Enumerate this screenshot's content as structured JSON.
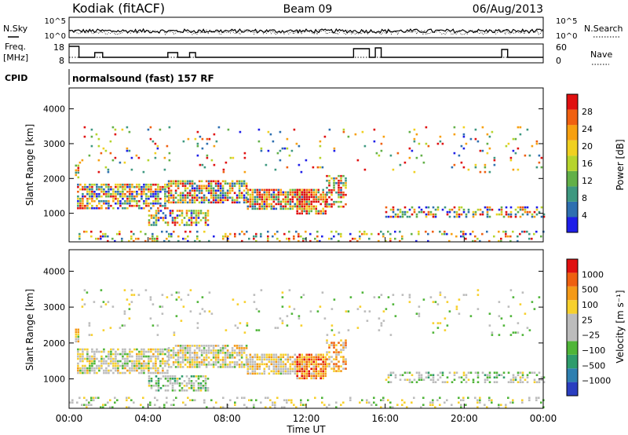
{
  "header": {
    "station": "Kodiak (fitACF)",
    "beam": "Beam 09",
    "date": "06/Aug/2013"
  },
  "mini_panels": {
    "noise": {
      "left_label": "N.Sky",
      "right_label": "N.Search",
      "left_ticks": [
        "10^5",
        "10^0"
      ],
      "right_ticks": [
        "10^5",
        "10^0"
      ]
    },
    "freq": {
      "left_label_1": "Freq.",
      "left_label_2": "[MHz]",
      "right_label": "Nave",
      "left_ticks": [
        "18",
        "8"
      ],
      "right_ticks": [
        "60",
        "0"
      ]
    },
    "cpid": {
      "label": "CPID",
      "value": "normalsound (fast) 157 RF"
    }
  },
  "chart_data": [
    {
      "type": "heatmap",
      "name": "power",
      "ylabel": "Slant Range [km]",
      "yticks": [
        1000,
        2000,
        3000,
        4000
      ],
      "ylim": [
        180,
        4600
      ],
      "colorbar": {
        "label": "Power [dB]",
        "ticks": [
          "4",
          "8",
          "12",
          "16",
          "20",
          "24",
          "28"
        ],
        "colors": [
          "#1e1ee8",
          "#2e6fb0",
          "#3e9880",
          "#62b048",
          "#b6d42c",
          "#f0d020",
          "#f7a010",
          "#f06010",
          "#e01010"
        ]
      }
    },
    {
      "type": "heatmap",
      "name": "velocity",
      "ylabel": "Slant Range [km]",
      "yticks": [
        1000,
        2000,
        3000,
        4000
      ],
      "ylim": [
        180,
        4600
      ],
      "colorbar": {
        "label": "Velocity [m s⁻¹]",
        "ticks": [
          "1000",
          "500",
          "100",
          "25",
          "−25",
          "−100",
          "−500",
          "−1000"
        ],
        "colors": [
          "#2a3ec0",
          "#2e7fb0",
          "#2f9c6c",
          "#4fb538",
          "#bcbcbc",
          "#bcbcbc",
          "#f7d02c",
          "#f49a18",
          "#ee6010",
          "#e01010"
        ]
      }
    }
  ],
  "time_axis": {
    "label": "Time UT",
    "ticks": [
      "00:00",
      "04:00",
      "08:00",
      "12:00",
      "16:00",
      "20:00",
      "00:00"
    ],
    "range_hours": [
      0,
      24
    ]
  },
  "scatter_regions": [
    {
      "t": [
        0.3,
        0.5
      ],
      "r": [
        2050,
        2400
      ],
      "density": 0.9,
      "vbias": 0.3
    },
    {
      "t": [
        0.4,
        5
      ],
      "r": [
        1150,
        1850
      ],
      "density": 0.7,
      "vbias": 0.1
    },
    {
      "t": [
        5,
        9
      ],
      "r": [
        1300,
        1950
      ],
      "density": 0.75,
      "vbias": 0.15
    },
    {
      "t": [
        9,
        12
      ],
      "r": [
        1150,
        1700
      ],
      "density": 0.8,
      "vbias": 0.3
    },
    {
      "t": [
        11.5,
        13
      ],
      "r": [
        1000,
        1700
      ],
      "density": 0.85,
      "vbias": 0.9
    },
    {
      "t": [
        4,
        7
      ],
      "r": [
        650,
        1100
      ],
      "density": 0.6,
      "vbias": -0.2
    },
    {
      "t": [
        13,
        14
      ],
      "r": [
        1200,
        2100
      ],
      "density": 0.55,
      "vbias": 0.7
    },
    {
      "t": [
        16,
        24
      ],
      "r": [
        900,
        1200
      ],
      "density": 0.45,
      "vbias": -0.1
    },
    {
      "t": [
        0,
        24
      ],
      "r": [
        200,
        500
      ],
      "density": 0.2,
      "vbias": 0.0
    },
    {
      "t": [
        0.5,
        24
      ],
      "r": [
        2200,
        3500
      ],
      "density": 0.05,
      "vbias": 0.0
    }
  ]
}
